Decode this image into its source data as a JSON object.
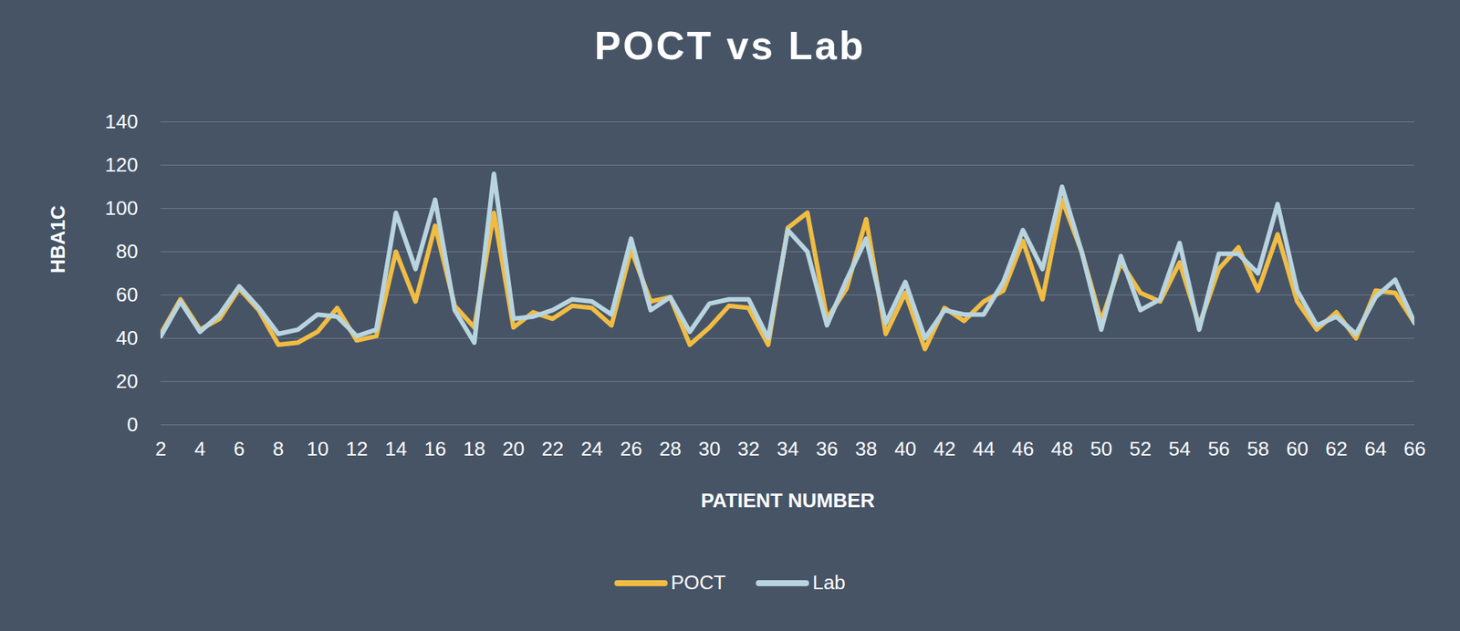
{
  "chart_data": {
    "type": "line",
    "title": "POCT vs Lab",
    "x_label": "PATIENT NUMBER",
    "y_label": "HBA1C",
    "x": [
      2,
      3,
      4,
      5,
      6,
      7,
      8,
      9,
      10,
      11,
      12,
      13,
      14,
      15,
      16,
      17,
      18,
      19,
      20,
      21,
      22,
      23,
      24,
      25,
      26,
      27,
      28,
      29,
      30,
      31,
      32,
      33,
      34,
      35,
      36,
      37,
      38,
      39,
      40,
      41,
      42,
      43,
      44,
      45,
      46,
      47,
      48,
      49,
      50,
      51,
      52,
      53,
      54,
      55,
      56,
      57,
      58,
      59,
      60,
      61,
      62,
      63,
      64,
      65,
      66
    ],
    "series": [
      {
        "name": "POCT",
        "color": "#f0bc44",
        "values": [
          42,
          58,
          44,
          49,
          63,
          53,
          37,
          38,
          43,
          54,
          39,
          41,
          80,
          57,
          92,
          55,
          45,
          98,
          45,
          52,
          49,
          55,
          54,
          46,
          81,
          57,
          59,
          37,
          45,
          55,
          54,
          37,
          91,
          98,
          49,
          63,
          95,
          42,
          61,
          35,
          54,
          48,
          57,
          62,
          85,
          58,
          104,
          80,
          48,
          75,
          61,
          57,
          75,
          46,
          72,
          82,
          62,
          88,
          57,
          44,
          52,
          40,
          62,
          61,
          47
        ]
      },
      {
        "name": "Lab",
        "color": "#b8d4df",
        "values": [
          41,
          57,
          43,
          51,
          64,
          54,
          42,
          44,
          51,
          50,
          41,
          44,
          98,
          72,
          104,
          53,
          38,
          116,
          49,
          50,
          53,
          58,
          57,
          51,
          86,
          53,
          59,
          43,
          56,
          58,
          58,
          40,
          90,
          80,
          46,
          67,
          86,
          47,
          66,
          40,
          53,
          51,
          51,
          66,
          90,
          72,
          110,
          80,
          44,
          78,
          53,
          58,
          84,
          44,
          79,
          79,
          70,
          102,
          62,
          46,
          50,
          42,
          59,
          67,
          47
        ]
      }
    ],
    "xlim": [
      2,
      66
    ],
    "xticks": [
      2,
      4,
      6,
      8,
      10,
      12,
      14,
      16,
      18,
      20,
      22,
      24,
      26,
      28,
      30,
      32,
      34,
      36,
      38,
      40,
      42,
      44,
      46,
      48,
      50,
      52,
      54,
      56,
      58,
      60,
      62,
      64,
      66
    ],
    "ylim": [
      0,
      140
    ],
    "yticks": [
      0,
      20,
      40,
      60,
      80,
      100,
      120,
      140
    ],
    "grid": true,
    "legend": "bottom"
  }
}
